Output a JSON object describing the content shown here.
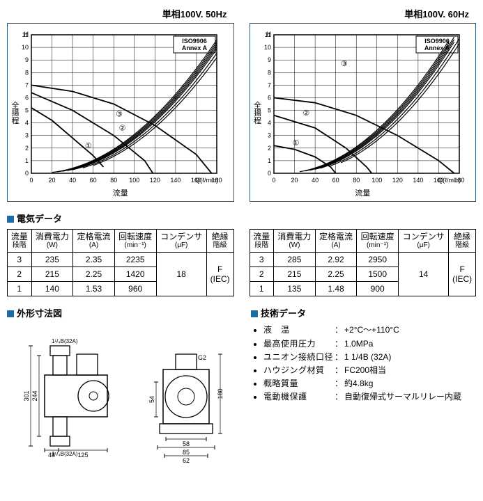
{
  "left": {
    "header": "単相100V. 50Hz",
    "chart": {
      "iso_label": "ISO9906",
      "annex_label": "Annex A",
      "ylabel": "全揚程",
      "xlabel": "流量",
      "y_unit": "H",
      "x_unit": "Q(ℓ/min)",
      "xticks": [
        0,
        20,
        40,
        60,
        80,
        100,
        120,
        140,
        160,
        180
      ],
      "yticks": [
        0,
        1,
        2,
        3,
        4,
        5,
        6,
        7,
        8,
        9,
        10,
        11
      ],
      "grid_color": "#000000",
      "curve_color": "#000000",
      "series_labels": [
        "①",
        "②",
        "③"
      ],
      "pump_curves": [
        [
          [
            0,
            5.2
          ],
          [
            20,
            4.2
          ],
          [
            40,
            2.8
          ],
          [
            60,
            1.4
          ],
          [
            70,
            0.5
          ]
        ],
        [
          [
            0,
            6.4
          ],
          [
            40,
            5.0
          ],
          [
            80,
            3.0
          ],
          [
            110,
            1.0
          ],
          [
            118,
            0
          ]
        ],
        [
          [
            0,
            7.0
          ],
          [
            40,
            6.5
          ],
          [
            80,
            5.5
          ],
          [
            120,
            3.8
          ],
          [
            160,
            1.5
          ],
          [
            175,
            0
          ]
        ]
      ],
      "system_curves_start_x": [
        20,
        25,
        30,
        35,
        40,
        50,
        60
      ],
      "system_curves_slope": 0.00035
    }
  },
  "right": {
    "header": "単相100V. 60Hz",
    "chart": {
      "iso_label": "ISO9906",
      "annex_label": "Annex A",
      "ylabel": "全揚程",
      "xlabel": "流量",
      "y_unit": "H",
      "x_unit": "Q(ℓ/min)",
      "xticks": [
        0,
        20,
        40,
        60,
        80,
        100,
        120,
        140,
        160,
        180
      ],
      "yticks": [
        0,
        1,
        2,
        3,
        4,
        5,
        6,
        7,
        8,
        9,
        10,
        11
      ],
      "grid_color": "#000000",
      "curve_color": "#000000",
      "series_labels": [
        "①",
        "②",
        "③"
      ],
      "pump_curves": [
        [
          [
            0,
            2.2
          ],
          [
            20,
            1.9
          ],
          [
            40,
            1.3
          ],
          [
            55,
            0.5
          ],
          [
            60,
            0
          ]
        ],
        [
          [
            0,
            4.6
          ],
          [
            40,
            3.6
          ],
          [
            70,
            2.0
          ],
          [
            90,
            0.5
          ],
          [
            95,
            0
          ]
        ],
        [
          [
            0,
            6.0
          ],
          [
            40,
            5.6
          ],
          [
            80,
            4.6
          ],
          [
            120,
            3.0
          ],
          [
            160,
            1.0
          ],
          [
            175,
            0
          ]
        ]
      ],
      "system_curves_start_x": [
        25,
        30,
        35,
        40,
        45,
        55,
        65
      ],
      "system_curves_slope": 0.0004
    }
  },
  "elec": {
    "title": "電気データ",
    "columns": [
      {
        "label": "流量",
        "unit": "段階"
      },
      {
        "label": "消費電力",
        "unit": "(W)"
      },
      {
        "label": "定格電流",
        "unit": "(A)"
      },
      {
        "label": "回転速度",
        "unit": "(min⁻¹)"
      },
      {
        "label": "コンデンサ",
        "unit": "(μF)"
      },
      {
        "label": "絶縁",
        "unit": "階級"
      }
    ],
    "left_rows": [
      {
        "stage": "3",
        "w": "235",
        "a": "2.35",
        "rpm": "2235"
      },
      {
        "stage": "2",
        "w": "215",
        "a": "2.25",
        "rpm": "1420"
      },
      {
        "stage": "1",
        "w": "140",
        "a": "1.53",
        "rpm": "960"
      }
    ],
    "left_cap": "18",
    "left_ins": "F\n(IEC)",
    "right_rows": [
      {
        "stage": "3",
        "w": "285",
        "a": "2.92",
        "rpm": "2950"
      },
      {
        "stage": "2",
        "w": "215",
        "a": "2.25",
        "rpm": "1500"
      },
      {
        "stage": "1",
        "w": "135",
        "a": "1.48",
        "rpm": "900"
      }
    ],
    "right_cap": "14",
    "right_ins": "F\n(IEC)"
  },
  "dim": {
    "title": "外形寸法図",
    "labels": {
      "pipe1": "1¹/₄B(32A)",
      "pipe2": "1¹/₄B(32A)",
      "g2": "G2",
      "d301": "301",
      "d244": "244",
      "d48": "48",
      "d125": "125",
      "d54": "54",
      "d58": "58",
      "d85": "85",
      "d62": "62",
      "d180": "180"
    }
  },
  "tech": {
    "title": "技術データ",
    "items": [
      {
        "label": "液　温",
        "value": "+2°C～+110°C"
      },
      {
        "label": "最高使用圧力",
        "value": "1.0MPa"
      },
      {
        "label": "ユニオン接続口径",
        "value": "1 1/4B (32A)"
      },
      {
        "label": "ハウジング材質",
        "value": "FC200相当"
      },
      {
        "label": "概略質量",
        "value": "約4.8kg"
      },
      {
        "label": "電動機保護",
        "value": "自動復帰式サーマルリレー内蔵"
      }
    ]
  }
}
